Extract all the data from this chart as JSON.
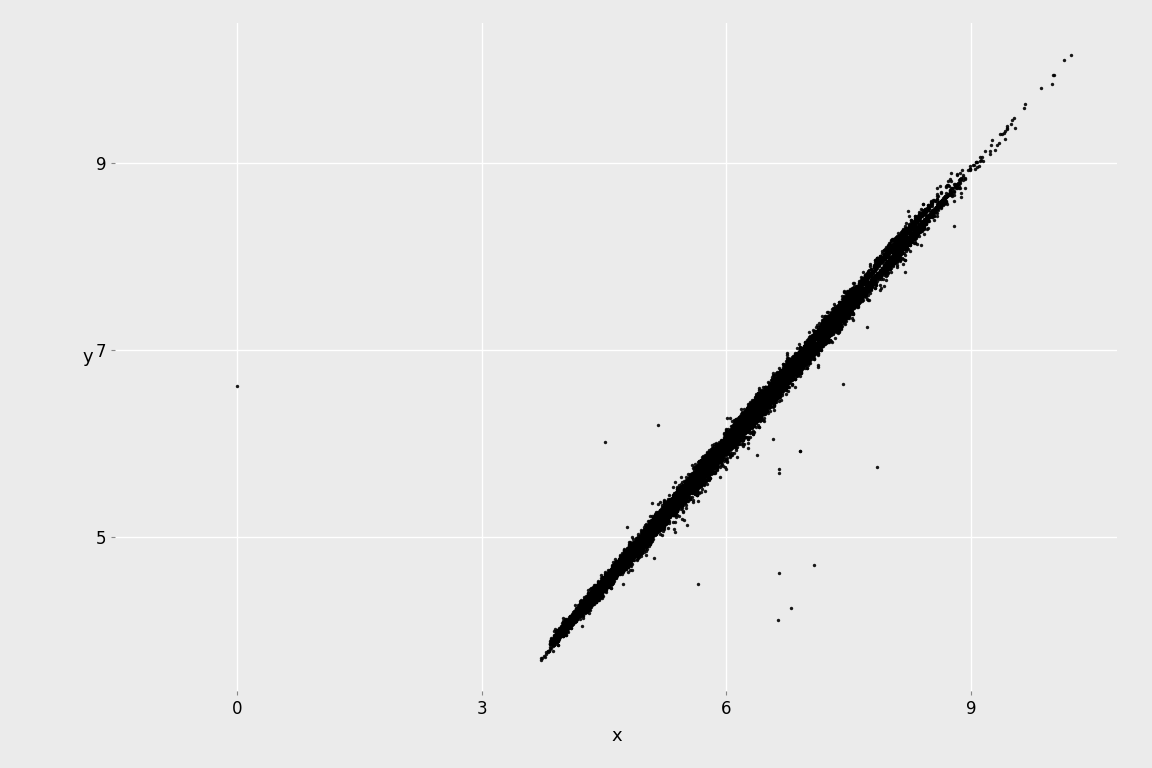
{
  "title": "",
  "xlabel": "x",
  "ylabel": "y",
  "point_color": "#000000",
  "point_size": 6,
  "point_alpha": 0.9,
  "bg_color": "#EBEBEB",
  "panel_bg": "#EBEBEB",
  "grid_color": "#FFFFFF",
  "xlim": [
    -1.5,
    10.8
  ],
  "ylim": [
    3.35,
    10.5
  ],
  "xticks": [
    0,
    3,
    6,
    9
  ],
  "yticks": [
    5,
    7,
    9
  ],
  "xlabel_fontsize": 13,
  "ylabel_fontsize": 13,
  "tick_fontsize": 12
}
